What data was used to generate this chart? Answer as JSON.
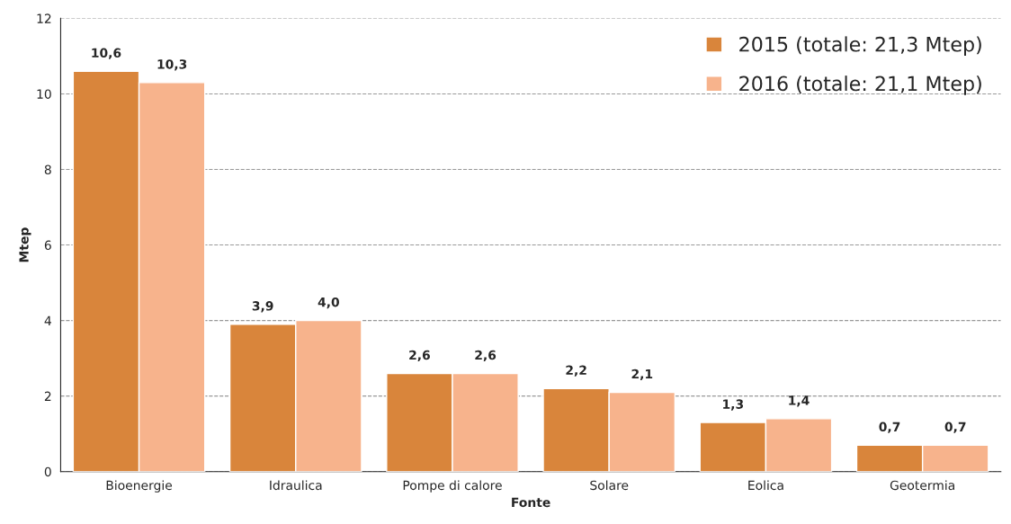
{
  "chart_data": {
    "type": "bar",
    "xlabel": "Fonte",
    "ylabel": "Mtep",
    "categories": [
      "Bioenergie",
      "Idraulica",
      "Pompe di calore",
      "Solare",
      "Eolica",
      "Geotermia"
    ],
    "series": [
      {
        "name": "2015 (totale: 21,3 Mtep)",
        "color": "#d9853b",
        "values": [
          10.6,
          3.9,
          2.6,
          2.2,
          1.3,
          0.7
        ],
        "value_labels": [
          "10,6",
          "3,9",
          "2,6",
          "2,2",
          "1,3",
          "0,7"
        ]
      },
      {
        "name": "2016 (totale: 21,1 Mtep)",
        "color": "#f7b38c",
        "values": [
          10.3,
          4.0,
          2.6,
          2.1,
          1.4,
          0.7
        ],
        "value_labels": [
          "10,3",
          "4,0",
          "2,6",
          "2,1",
          "1,4",
          "0,7"
        ]
      }
    ],
    "ylim": [
      0,
      12
    ],
    "yticks": [
      0,
      2,
      4,
      6,
      8,
      10,
      12
    ],
    "grid": "y",
    "legend": "top right"
  }
}
